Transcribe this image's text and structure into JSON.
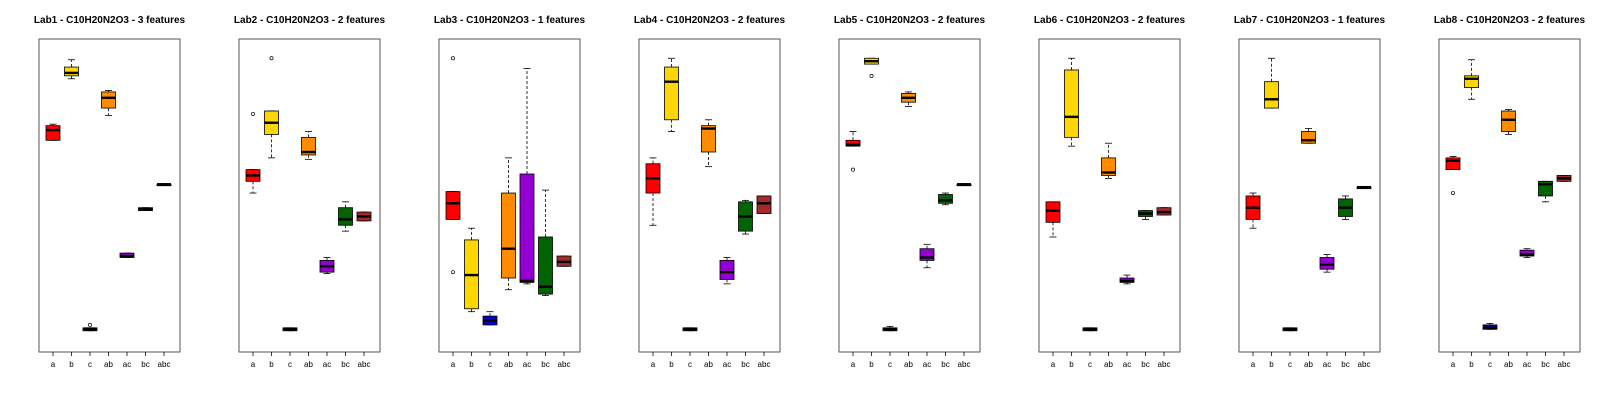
{
  "colors": {
    "a": "#ff0000",
    "b": "#ffd700",
    "c": "#0000cd",
    "ab": "#ff8c00",
    "ac": "#9400d3",
    "bc": "#006400",
    "abc": "#a52a2a"
  },
  "chart_data": [
    {
      "type": "boxplot",
      "title": "Lab1 - C10H20N2O3 - 3 features",
      "categories": [
        "a",
        "b",
        "c",
        "ab",
        "ac",
        "bc",
        "abc"
      ],
      "ylim": [
        0,
        1
      ],
      "boxes": [
        {
          "cat": "a",
          "min": 0.685,
          "q1": 0.685,
          "median": 0.72,
          "q3": 0.735,
          "max": 0.74,
          "outliers": []
        },
        {
          "cat": "b",
          "min": 0.895,
          "q1": 0.905,
          "median": 0.915,
          "q3": 0.935,
          "max": 0.96,
          "outliers": []
        },
        {
          "cat": "c",
          "min": 0.035,
          "q1": 0.035,
          "median": 0.04,
          "q3": 0.045,
          "max": 0.045,
          "outliers": [
            0.055
          ]
        },
        {
          "cat": "ab",
          "min": 0.77,
          "q1": 0.795,
          "median": 0.83,
          "q3": 0.85,
          "max": 0.855,
          "outliers": []
        },
        {
          "cat": "ac",
          "min": 0.285,
          "q1": 0.285,
          "median": 0.29,
          "q3": 0.3,
          "max": 0.3,
          "outliers": []
        },
        {
          "cat": "bc",
          "min": 0.445,
          "q1": 0.445,
          "median": 0.45,
          "q3": 0.455,
          "max": 0.455,
          "outliers": []
        },
        {
          "cat": "abc",
          "min": 0.535,
          "q1": 0.535,
          "median": 0.535,
          "q3": 0.535,
          "max": 0.535,
          "outliers": []
        }
      ]
    },
    {
      "type": "boxplot",
      "title": "Lab2 - C10H20N2O3 - 2 features",
      "categories": [
        "a",
        "b",
        "c",
        "ab",
        "ac",
        "bc",
        "abc"
      ],
      "ylim": [
        0,
        1
      ],
      "boxes": [
        {
          "cat": "a",
          "min": 0.505,
          "q1": 0.545,
          "median": 0.565,
          "q3": 0.585,
          "max": 0.585,
          "outliers": [
            0.775
          ]
        },
        {
          "cat": "b",
          "min": 0.625,
          "q1": 0.705,
          "median": 0.745,
          "q3": 0.785,
          "max": 0.785,
          "outliers": [
            0.965
          ]
        },
        {
          "cat": "c",
          "min": 0.035,
          "q1": 0.035,
          "median": 0.04,
          "q3": 0.045,
          "max": 0.045,
          "outliers": []
        },
        {
          "cat": "ab",
          "min": 0.62,
          "q1": 0.635,
          "median": 0.645,
          "q3": 0.695,
          "max": 0.715,
          "outliers": []
        },
        {
          "cat": "ac",
          "min": 0.23,
          "q1": 0.235,
          "median": 0.255,
          "q3": 0.275,
          "max": 0.285,
          "outliers": []
        },
        {
          "cat": "bc",
          "min": 0.375,
          "q1": 0.395,
          "median": 0.415,
          "q3": 0.455,
          "max": 0.475,
          "outliers": []
        },
        {
          "cat": "abc",
          "min": 0.41,
          "q1": 0.41,
          "median": 0.425,
          "q3": 0.44,
          "max": 0.44,
          "outliers": []
        }
      ]
    },
    {
      "type": "boxplot",
      "title": "Lab3 - C10H20N2O3 - 1 features",
      "categories": [
        "a",
        "b",
        "c",
        "ab",
        "ac",
        "bc",
        "abc"
      ],
      "ylim": [
        0,
        1
      ],
      "boxes": [
        {
          "cat": "a",
          "min": 0.415,
          "q1": 0.415,
          "median": 0.47,
          "q3": 0.51,
          "max": 0.51,
          "outliers": [
            0.965,
            0.235
          ]
        },
        {
          "cat": "b",
          "min": 0.1,
          "q1": 0.11,
          "median": 0.225,
          "q3": 0.345,
          "max": 0.385,
          "outliers": []
        },
        {
          "cat": "c",
          "min": 0.055,
          "q1": 0.055,
          "median": 0.07,
          "q3": 0.085,
          "max": 0.1,
          "outliers": []
        },
        {
          "cat": "ab",
          "min": 0.175,
          "q1": 0.215,
          "median": 0.315,
          "q3": 0.505,
          "max": 0.625,
          "outliers": []
        },
        {
          "cat": "ac",
          "min": 0.195,
          "q1": 0.2,
          "median": 0.205,
          "q3": 0.57,
          "max": 0.93,
          "outliers": []
        },
        {
          "cat": "bc",
          "min": 0.155,
          "q1": 0.16,
          "median": 0.185,
          "q3": 0.355,
          "max": 0.515,
          "outliers": []
        },
        {
          "cat": "abc",
          "min": 0.255,
          "q1": 0.255,
          "median": 0.27,
          "q3": 0.29,
          "max": 0.29,
          "outliers": []
        }
      ]
    },
    {
      "type": "boxplot",
      "title": "Lab4 - C10H20N2O3 - 2 features",
      "categories": [
        "a",
        "b",
        "c",
        "ab",
        "ac",
        "bc",
        "abc"
      ],
      "ylim": [
        0,
        1
      ],
      "boxes": [
        {
          "cat": "a",
          "min": 0.395,
          "q1": 0.505,
          "median": 0.555,
          "q3": 0.605,
          "max": 0.625,
          "outliers": []
        },
        {
          "cat": "b",
          "min": 0.715,
          "q1": 0.755,
          "median": 0.885,
          "q3": 0.935,
          "max": 0.965,
          "outliers": []
        },
        {
          "cat": "c",
          "min": 0.035,
          "q1": 0.035,
          "median": 0.04,
          "q3": 0.045,
          "max": 0.045,
          "outliers": []
        },
        {
          "cat": "ab",
          "min": 0.595,
          "q1": 0.645,
          "median": 0.725,
          "q3": 0.735,
          "max": 0.755,
          "outliers": []
        },
        {
          "cat": "ac",
          "min": 0.195,
          "q1": 0.21,
          "median": 0.235,
          "q3": 0.275,
          "max": 0.285,
          "outliers": []
        },
        {
          "cat": "bc",
          "min": 0.365,
          "q1": 0.375,
          "median": 0.425,
          "q3": 0.475,
          "max": 0.48,
          "outliers": []
        },
        {
          "cat": "abc",
          "min": 0.435,
          "q1": 0.435,
          "median": 0.47,
          "q3": 0.495,
          "max": 0.495,
          "outliers": []
        }
      ]
    },
    {
      "type": "boxplot",
      "title": "Lab5 - C10H20N2O3 - 2 features",
      "categories": [
        "a",
        "b",
        "c",
        "ab",
        "ac",
        "bc",
        "abc"
      ],
      "ylim": [
        0,
        1
      ],
      "boxes": [
        {
          "cat": "a",
          "min": 0.665,
          "q1": 0.665,
          "median": 0.67,
          "q3": 0.685,
          "max": 0.715,
          "outliers": [
            0.585
          ]
        },
        {
          "cat": "b",
          "min": 0.945,
          "q1": 0.945,
          "median": 0.955,
          "q3": 0.965,
          "max": 0.965,
          "outliers": [
            0.905
          ]
        },
        {
          "cat": "c",
          "min": 0.035,
          "q1": 0.035,
          "median": 0.04,
          "q3": 0.045,
          "max": 0.05,
          "outliers": []
        },
        {
          "cat": "ab",
          "min": 0.8,
          "q1": 0.815,
          "median": 0.83,
          "q3": 0.845,
          "max": 0.85,
          "outliers": []
        },
        {
          "cat": "ac",
          "min": 0.25,
          "q1": 0.275,
          "median": 0.285,
          "q3": 0.315,
          "max": 0.33,
          "outliers": []
        },
        {
          "cat": "bc",
          "min": 0.465,
          "q1": 0.47,
          "median": 0.48,
          "q3": 0.5,
          "max": 0.505,
          "outliers": []
        },
        {
          "cat": "abc",
          "min": 0.535,
          "q1": 0.535,
          "median": 0.535,
          "q3": 0.535,
          "max": 0.535,
          "outliers": []
        }
      ]
    },
    {
      "type": "boxplot",
      "title": "Lab6 - C10H20N2O3 - 2 features",
      "categories": [
        "a",
        "b",
        "c",
        "ab",
        "ac",
        "bc",
        "abc"
      ],
      "ylim": [
        0,
        1
      ],
      "boxes": [
        {
          "cat": "a",
          "min": 0.355,
          "q1": 0.405,
          "median": 0.445,
          "q3": 0.475,
          "max": 0.475,
          "outliers": []
        },
        {
          "cat": "b",
          "min": 0.665,
          "q1": 0.695,
          "median": 0.765,
          "q3": 0.925,
          "max": 0.965,
          "outliers": []
        },
        {
          "cat": "c",
          "min": 0.035,
          "q1": 0.035,
          "median": 0.04,
          "q3": 0.045,
          "max": 0.045,
          "outliers": []
        },
        {
          "cat": "ab",
          "min": 0.555,
          "q1": 0.565,
          "median": 0.575,
          "q3": 0.625,
          "max": 0.675,
          "outliers": []
        },
        {
          "cat": "ac",
          "min": 0.195,
          "q1": 0.2,
          "median": 0.205,
          "q3": 0.215,
          "max": 0.225,
          "outliers": []
        },
        {
          "cat": "bc",
          "min": 0.415,
          "q1": 0.425,
          "median": 0.435,
          "q3": 0.445,
          "max": 0.445,
          "outliers": []
        },
        {
          "cat": "abc",
          "min": 0.43,
          "q1": 0.43,
          "median": 0.44,
          "q3": 0.455,
          "max": 0.455,
          "outliers": []
        }
      ]
    },
    {
      "type": "boxplot",
      "title": "Lab7 - C10H20N2O3 - 1 features",
      "categories": [
        "a",
        "b",
        "c",
        "ab",
        "ac",
        "bc",
        "abc"
      ],
      "ylim": [
        0,
        1
      ],
      "boxes": [
        {
          "cat": "a",
          "min": 0.385,
          "q1": 0.415,
          "median": 0.455,
          "q3": 0.495,
          "max": 0.505,
          "outliers": []
        },
        {
          "cat": "b",
          "min": 0.795,
          "q1": 0.795,
          "median": 0.825,
          "q3": 0.885,
          "max": 0.965,
          "outliers": []
        },
        {
          "cat": "c",
          "min": 0.035,
          "q1": 0.035,
          "median": 0.04,
          "q3": 0.045,
          "max": 0.045,
          "outliers": []
        },
        {
          "cat": "ab",
          "min": 0.675,
          "q1": 0.675,
          "median": 0.685,
          "q3": 0.715,
          "max": 0.725,
          "outliers": []
        },
        {
          "cat": "ac",
          "min": 0.235,
          "q1": 0.245,
          "median": 0.26,
          "q3": 0.285,
          "max": 0.295,
          "outliers": []
        },
        {
          "cat": "bc",
          "min": 0.415,
          "q1": 0.425,
          "median": 0.455,
          "q3": 0.485,
          "max": 0.495,
          "outliers": []
        },
        {
          "cat": "abc",
          "min": 0.525,
          "q1": 0.525,
          "median": 0.525,
          "q3": 0.525,
          "max": 0.525,
          "outliers": []
        }
      ]
    },
    {
      "type": "boxplot",
      "title": "Lab8 - C10H20N2O3 - 2 features",
      "categories": [
        "a",
        "b",
        "c",
        "ab",
        "ac",
        "bc",
        "abc"
      ],
      "ylim": [
        0,
        1
      ],
      "boxes": [
        {
          "cat": "a",
          "min": 0.585,
          "q1": 0.585,
          "median": 0.615,
          "q3": 0.625,
          "max": 0.63,
          "outliers": [
            0.505
          ]
        },
        {
          "cat": "b",
          "min": 0.825,
          "q1": 0.865,
          "median": 0.895,
          "q3": 0.905,
          "max": 0.96,
          "outliers": []
        },
        {
          "cat": "c",
          "min": 0.04,
          "q1": 0.04,
          "median": 0.045,
          "q3": 0.055,
          "max": 0.06,
          "outliers": []
        },
        {
          "cat": "ab",
          "min": 0.705,
          "q1": 0.715,
          "median": 0.755,
          "q3": 0.785,
          "max": 0.79,
          "outliers": []
        },
        {
          "cat": "ac",
          "min": 0.285,
          "q1": 0.29,
          "median": 0.295,
          "q3": 0.31,
          "max": 0.315,
          "outliers": []
        },
        {
          "cat": "bc",
          "min": 0.475,
          "q1": 0.495,
          "median": 0.535,
          "q3": 0.545,
          "max": 0.545,
          "outliers": []
        },
        {
          "cat": "abc",
          "min": 0.545,
          "q1": 0.545,
          "median": 0.555,
          "q3": 0.565,
          "max": 0.565,
          "outliers": []
        }
      ]
    }
  ]
}
